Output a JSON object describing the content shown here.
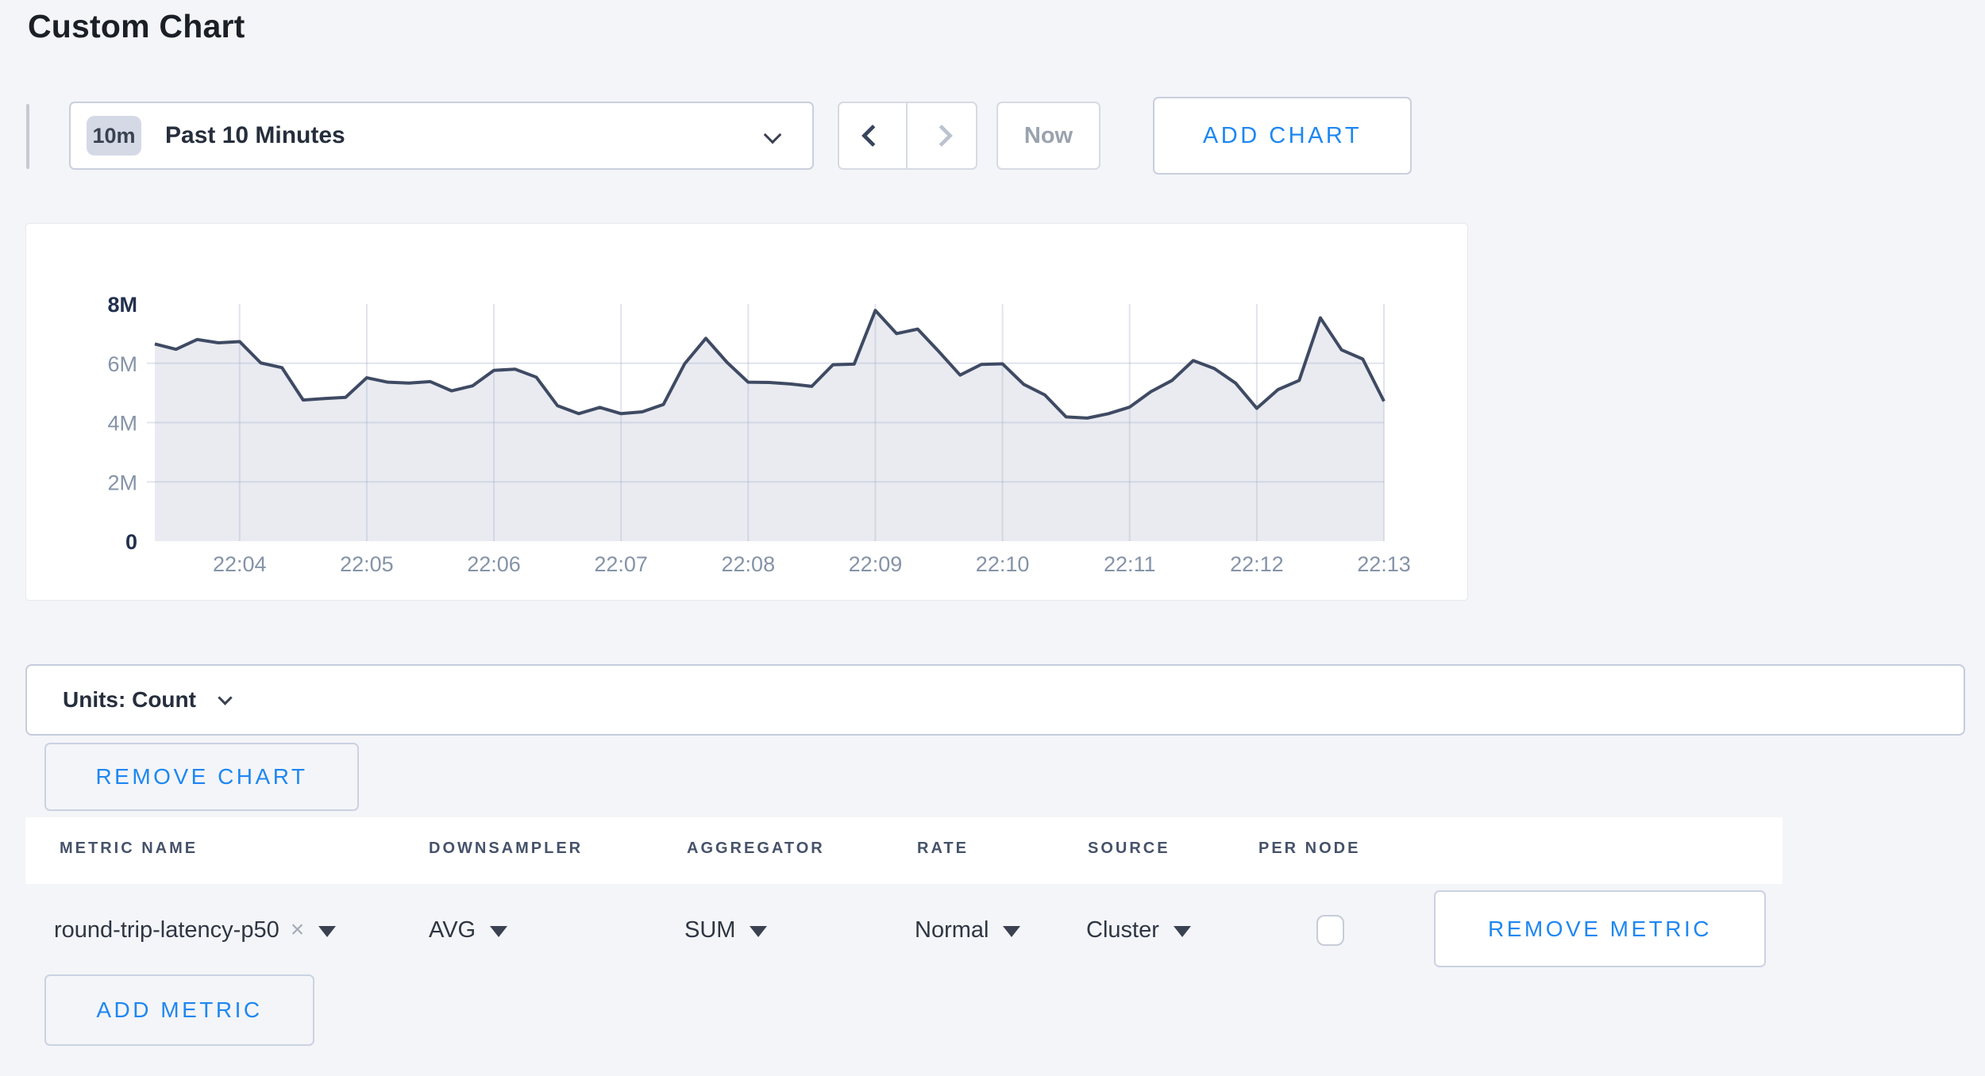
{
  "page": {
    "title": "Custom Chart"
  },
  "toolbar": {
    "time_range": {
      "badge": "10m",
      "label": "Past 10 Minutes"
    },
    "now_label": "Now",
    "add_chart_label": "ADD CHART"
  },
  "chart_data": {
    "type": "area",
    "title": "",
    "x": [
      "22:03:20",
      "22:03:30",
      "22:03:40",
      "22:03:50",
      "22:04:00",
      "22:04:10",
      "22:04:20",
      "22:04:30",
      "22:04:40",
      "22:04:50",
      "22:05:00",
      "22:05:10",
      "22:05:20",
      "22:05:30",
      "22:05:40",
      "22:05:50",
      "22:06:00",
      "22:06:10",
      "22:06:20",
      "22:06:30",
      "22:06:40",
      "22:06:50",
      "22:07:00",
      "22:07:10",
      "22:07:20",
      "22:07:30",
      "22:07:40",
      "22:07:50",
      "22:08:00",
      "22:08:10",
      "22:08:20",
      "22:08:30",
      "22:08:40",
      "22:08:50",
      "22:09:00",
      "22:09:10",
      "22:09:20",
      "22:09:30",
      "22:09:40",
      "22:09:50",
      "22:10:00",
      "22:10:10",
      "22:10:20",
      "22:10:30",
      "22:10:40",
      "22:10:50",
      "22:11:00",
      "22:11:10",
      "22:11:20",
      "22:11:30",
      "22:11:40",
      "22:11:50",
      "22:12:00",
      "22:12:10",
      "22:12:20",
      "22:12:30",
      "22:12:40",
      "22:12:50",
      "22:13:00"
    ],
    "values_millions": [
      6.65,
      6.47,
      6.8,
      6.69,
      6.73,
      6.01,
      5.85,
      4.76,
      4.81,
      4.85,
      5.51,
      5.36,
      5.33,
      5.38,
      5.07,
      5.24,
      5.76,
      5.8,
      5.53,
      4.57,
      4.3,
      4.51,
      4.3,
      4.36,
      4.61,
      5.98,
      6.84,
      6.03,
      5.36,
      5.35,
      5.3,
      5.22,
      5.95,
      5.97,
      7.78,
      7.0,
      7.15,
      6.39,
      5.6,
      5.96,
      5.98,
      5.29,
      4.93,
      4.19,
      4.15,
      4.3,
      4.52,
      5.04,
      5.42,
      6.09,
      5.82,
      5.33,
      4.48,
      5.11,
      5.42,
      7.53,
      6.45,
      6.14,
      4.72
    ],
    "y_unit": "count (millions)",
    "ylim_millions": [
      0,
      8
    ],
    "y_tick_labels": [
      "8M",
      "6M",
      "4M",
      "2M",
      "0"
    ],
    "y_tick_values_millions": [
      8,
      6,
      4,
      2,
      0
    ],
    "y_grid_values_millions": [
      6,
      4,
      2
    ],
    "x_tick_labels": [
      "22:04",
      "22:05",
      "22:06",
      "22:07",
      "22:08",
      "22:09",
      "22:10",
      "22:11",
      "22:12",
      "22:13"
    ],
    "x_tick_indices": [
      4,
      10,
      16,
      22,
      28,
      34,
      40,
      46,
      52,
      58
    ],
    "grid": true,
    "legend": "none",
    "line_color": "#3f4a63",
    "fill_color": "#e9ebf1",
    "grid_color": "rgba(168,178,200,0.35)",
    "tick_color": "#8593a8",
    "tick_bold_color": "#22304e"
  },
  "units_bar": {
    "label": "Units: Count"
  },
  "chart_actions": {
    "remove_chart_label": "REMOVE CHART"
  },
  "metrics_table": {
    "headers": [
      "METRIC NAME",
      "DOWNSAMPLER",
      "AGGREGATOR",
      "RATE",
      "SOURCE",
      "PER NODE"
    ],
    "rows": [
      {
        "metric_name": "round-trip-latency-p50",
        "remove_tag": "×",
        "downsampler": "AVG",
        "aggregator": "SUM",
        "rate": "Normal",
        "source": "Cluster",
        "per_node_checked": false,
        "remove_label": "REMOVE METRIC"
      }
    ],
    "add_metric_label": "ADD METRIC"
  }
}
